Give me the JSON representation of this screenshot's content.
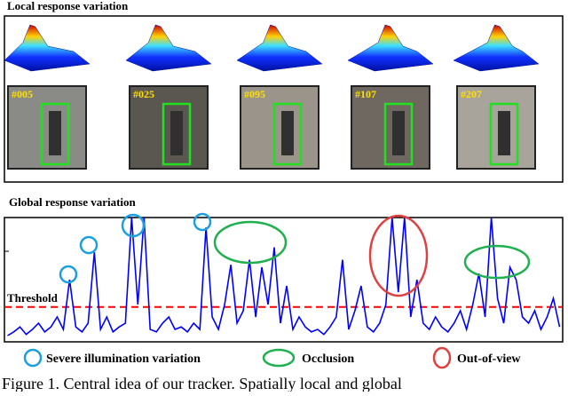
{
  "figure": {
    "local_title": "Local response variation",
    "frames": [
      "#005",
      "#025",
      "#095",
      "#107",
      "#207"
    ],
    "global_title": "Global response variation",
    "threshold_label": "Threshold",
    "legend": [
      "Severe illumination variation",
      "Occlusion",
      "Out-of-view"
    ],
    "caption": "Figure 1. Central idea of our tracker. Spatially local and global"
  },
  "chart_data": {
    "type": "line",
    "color": "#0000ff",
    "threshold": 0.28,
    "threshold_color": "#ff0000",
    "ylim": [
      0,
      1
    ],
    "values": [
      0.05,
      0.08,
      0.12,
      0.06,
      0.1,
      0.15,
      0.08,
      0.12,
      0.2,
      0.1,
      0.5,
      0.12,
      0.08,
      0.15,
      0.72,
      0.1,
      0.2,
      0.08,
      0.12,
      0.15,
      1.0,
      0.3,
      1.0,
      0.1,
      0.08,
      0.15,
      0.2,
      0.1,
      0.12,
      0.08,
      0.15,
      0.1,
      0.92,
      0.2,
      0.1,
      0.3,
      0.62,
      0.15,
      0.25,
      0.66,
      0.2,
      0.6,
      0.3,
      0.76,
      0.15,
      0.45,
      0.1,
      0.2,
      0.12,
      0.08,
      0.1,
      0.06,
      0.12,
      0.2,
      0.66,
      0.1,
      0.25,
      0.45,
      0.12,
      0.08,
      0.15,
      0.3,
      1.0,
      0.4,
      1.0,
      0.2,
      0.5,
      0.15,
      0.1,
      0.2,
      0.12,
      0.08,
      0.15,
      0.25,
      0.1,
      0.3,
      0.55,
      0.2,
      1.0,
      0.35,
      0.15,
      0.6,
      0.5,
      0.2,
      0.15,
      0.25,
      0.1,
      0.2,
      0.35,
      0.12
    ]
  }
}
